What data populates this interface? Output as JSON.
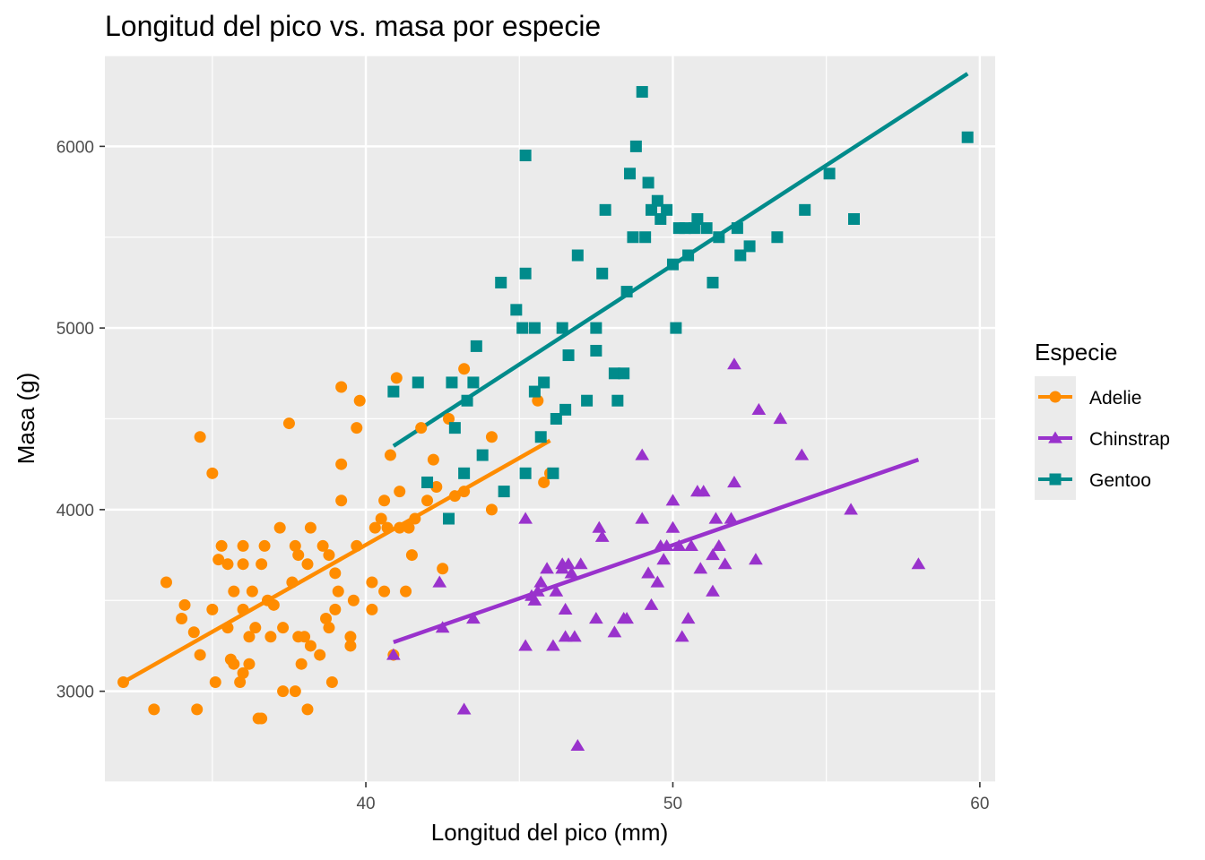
{
  "chart_data": {
    "type": "scatter",
    "title": "Longitud del pico vs. masa por especie",
    "xlabel": "Longitud del pico (mm)",
    "ylabel": "Masa (g)",
    "xlim": [
      31.5,
      60.5
    ],
    "ylim": [
      2500,
      6500
    ],
    "xticks": [
      40,
      50,
      60
    ],
    "yticks": [
      3000,
      4000,
      5000,
      6000
    ],
    "grid": true,
    "legend": {
      "title": "Especie",
      "position": "right"
    },
    "series": [
      {
        "name": "Adelie",
        "color": "#ff8c00",
        "marker": "circle",
        "trend": [
          [
            32.1,
            3050
          ],
          [
            46.0,
            4380
          ]
        ],
        "points": [
          [
            32.1,
            3050
          ],
          [
            33.1,
            2900
          ],
          [
            33.5,
            3600
          ],
          [
            34.0,
            3400
          ],
          [
            34.1,
            3475
          ],
          [
            34.4,
            3325
          ],
          [
            34.5,
            2900
          ],
          [
            34.6,
            3200
          ],
          [
            34.6,
            4400
          ],
          [
            35.0,
            3450
          ],
          [
            35.0,
            4200
          ],
          [
            35.1,
            3050
          ],
          [
            35.2,
            3725
          ],
          [
            35.3,
            3800
          ],
          [
            35.5,
            3350
          ],
          [
            35.5,
            3700
          ],
          [
            35.6,
            3175
          ],
          [
            35.7,
            3150
          ],
          [
            35.7,
            3550
          ],
          [
            35.9,
            3050
          ],
          [
            36.0,
            3100
          ],
          [
            36.0,
            3450
          ],
          [
            36.0,
            3700
          ],
          [
            36.0,
            3800
          ],
          [
            36.2,
            3300
          ],
          [
            36.2,
            3150
          ],
          [
            36.3,
            3550
          ],
          [
            36.4,
            3350
          ],
          [
            36.5,
            2850
          ],
          [
            36.6,
            2850
          ],
          [
            36.6,
            3700
          ],
          [
            36.7,
            3800
          ],
          [
            36.8,
            3500
          ],
          [
            36.9,
            3300
          ],
          [
            37.0,
            3475
          ],
          [
            37.2,
            3900
          ],
          [
            37.3,
            3000
          ],
          [
            37.3,
            3350
          ],
          [
            37.5,
            4475
          ],
          [
            37.6,
            3600
          ],
          [
            37.7,
            3000
          ],
          [
            37.7,
            3800
          ],
          [
            37.8,
            3300
          ],
          [
            37.8,
            3750
          ],
          [
            37.9,
            3150
          ],
          [
            38.0,
            3300
          ],
          [
            38.1,
            2900
          ],
          [
            38.1,
            3700
          ],
          [
            38.2,
            3250
          ],
          [
            38.2,
            3900
          ],
          [
            38.5,
            3200
          ],
          [
            38.6,
            3800
          ],
          [
            38.7,
            3400
          ],
          [
            38.8,
            3350
          ],
          [
            38.8,
            3750
          ],
          [
            38.9,
            3050
          ],
          [
            39.0,
            3450
          ],
          [
            39.0,
            3650
          ],
          [
            39.1,
            3550
          ],
          [
            39.2,
            4250
          ],
          [
            39.2,
            4050
          ],
          [
            39.2,
            4675
          ],
          [
            39.5,
            3250
          ],
          [
            39.5,
            3300
          ],
          [
            39.6,
            3500
          ],
          [
            39.7,
            3800
          ],
          [
            39.7,
            4450
          ],
          [
            39.8,
            4600
          ],
          [
            40.2,
            3600
          ],
          [
            40.2,
            3450
          ],
          [
            40.3,
            3900
          ],
          [
            40.5,
            3950
          ],
          [
            40.6,
            3550
          ],
          [
            40.6,
            4050
          ],
          [
            40.7,
            3900
          ],
          [
            40.8,
            4300
          ],
          [
            40.9,
            3200
          ],
          [
            41.0,
            4725
          ],
          [
            41.1,
            3900
          ],
          [
            41.1,
            4100
          ],
          [
            41.3,
            3550
          ],
          [
            41.4,
            3900
          ],
          [
            41.5,
            3750
          ],
          [
            41.6,
            3950
          ],
          [
            41.8,
            4450
          ],
          [
            42.0,
            4050
          ],
          [
            42.2,
            4275
          ],
          [
            42.3,
            4125
          ],
          [
            42.5,
            3675
          ],
          [
            42.7,
            4500
          ],
          [
            42.9,
            4075
          ],
          [
            43.2,
            4775
          ],
          [
            43.2,
            4100
          ],
          [
            44.1,
            4000
          ],
          [
            44.1,
            4400
          ],
          [
            45.6,
            4600
          ],
          [
            45.8,
            4150
          ],
          [
            46.0,
            4200
          ]
        ]
      },
      {
        "name": "Chinstrap",
        "color": "#9932cc",
        "marker": "triangle",
        "trend": [
          [
            40.9,
            3270
          ],
          [
            58.0,
            4275
          ]
        ],
        "points": [
          [
            40.9,
            3200
          ],
          [
            42.4,
            3600
          ],
          [
            42.5,
            3350
          ],
          [
            43.2,
            2900
          ],
          [
            43.5,
            3400
          ],
          [
            45.2,
            3250
          ],
          [
            45.2,
            3950
          ],
          [
            45.4,
            3525
          ],
          [
            45.5,
            3500
          ],
          [
            45.6,
            3550
          ],
          [
            45.7,
            3600
          ],
          [
            45.9,
            3675
          ],
          [
            46.1,
            3250
          ],
          [
            46.2,
            3550
          ],
          [
            46.4,
            3675
          ],
          [
            46.4,
            3700
          ],
          [
            46.5,
            3450
          ],
          [
            46.5,
            3300
          ],
          [
            46.6,
            3700
          ],
          [
            46.7,
            3650
          ],
          [
            46.8,
            3300
          ],
          [
            46.9,
            2700
          ],
          [
            47.0,
            3700
          ],
          [
            47.5,
            3400
          ],
          [
            47.6,
            3900
          ],
          [
            47.7,
            3850
          ],
          [
            48.1,
            3325
          ],
          [
            48.5,
            3400
          ],
          [
            49.0,
            3950
          ],
          [
            49.0,
            4300
          ],
          [
            49.2,
            3650
          ],
          [
            49.3,
            3475
          ],
          [
            49.5,
            3600
          ],
          [
            49.7,
            3725
          ],
          [
            49.8,
            3800
          ],
          [
            50.0,
            3900
          ],
          [
            50.2,
            3800
          ],
          [
            50.3,
            3300
          ],
          [
            50.5,
            3400
          ],
          [
            50.6,
            3800
          ],
          [
            50.8,
            4100
          ],
          [
            50.9,
            3675
          ],
          [
            51.0,
            4100
          ],
          [
            51.3,
            3550
          ],
          [
            51.3,
            3750
          ],
          [
            51.4,
            3950
          ],
          [
            51.5,
            3800
          ],
          [
            51.7,
            3700
          ],
          [
            51.9,
            3950
          ],
          [
            52.0,
            4150
          ],
          [
            52.0,
            4800
          ],
          [
            52.7,
            3725
          ],
          [
            52.8,
            4550
          ],
          [
            53.5,
            4500
          ],
          [
            54.2,
            4300
          ],
          [
            55.8,
            4000
          ],
          [
            58.0,
            3700
          ],
          [
            50.0,
            4050
          ],
          [
            49.6,
            3800
          ],
          [
            48.4,
            3400
          ]
        ]
      },
      {
        "name": "Gentoo",
        "color": "#008b8b",
        "marker": "square",
        "trend": [
          [
            40.9,
            4350
          ],
          [
            59.6,
            6400
          ]
        ],
        "points": [
          [
            40.9,
            4650
          ],
          [
            41.7,
            4700
          ],
          [
            42.0,
            4150
          ],
          [
            42.7,
            3950
          ],
          [
            42.8,
            4700
          ],
          [
            42.9,
            4450
          ],
          [
            43.2,
            4200
          ],
          [
            43.3,
            4600
          ],
          [
            43.5,
            4700
          ],
          [
            43.6,
            4900
          ],
          [
            43.8,
            4300
          ],
          [
            44.5,
            4100
          ],
          [
            44.4,
            5250
          ],
          [
            44.9,
            5100
          ],
          [
            45.1,
            5000
          ],
          [
            45.2,
            5300
          ],
          [
            45.2,
            4200
          ],
          [
            45.5,
            4650
          ],
          [
            45.5,
            5000
          ],
          [
            45.7,
            4400
          ],
          [
            45.8,
            4700
          ],
          [
            46.1,
            4200
          ],
          [
            46.2,
            4500
          ],
          [
            46.4,
            5000
          ],
          [
            46.5,
            4550
          ],
          [
            46.6,
            4850
          ],
          [
            46.9,
            5400
          ],
          [
            47.2,
            4600
          ],
          [
            47.5,
            4875
          ],
          [
            47.7,
            5300
          ],
          [
            47.8,
            5650
          ],
          [
            48.1,
            4750
          ],
          [
            48.2,
            4600
          ],
          [
            48.4,
            4750
          ],
          [
            48.5,
            5200
          ],
          [
            48.7,
            5500
          ],
          [
            48.8,
            6000
          ],
          [
            49.1,
            5500
          ],
          [
            49.2,
            5800
          ],
          [
            49.3,
            5650
          ],
          [
            49.5,
            5700
          ],
          [
            49.6,
            5600
          ],
          [
            49.8,
            5650
          ],
          [
            50.0,
            5350
          ],
          [
            50.1,
            5000
          ],
          [
            50.2,
            5550
          ],
          [
            50.4,
            5550
          ],
          [
            50.5,
            5400
          ],
          [
            50.7,
            5550
          ],
          [
            50.8,
            5600
          ],
          [
            51.1,
            5550
          ],
          [
            51.3,
            5250
          ],
          [
            51.5,
            5500
          ],
          [
            52.1,
            5550
          ],
          [
            52.2,
            5400
          ],
          [
            52.5,
            5450
          ],
          [
            53.4,
            5500
          ],
          [
            54.3,
            5650
          ],
          [
            55.1,
            5850
          ],
          [
            55.9,
            5600
          ],
          [
            59.6,
            6050
          ],
          [
            49.0,
            6300
          ],
          [
            45.2,
            5950
          ],
          [
            47.5,
            5000
          ],
          [
            48.6,
            5850
          ]
        ]
      }
    ]
  }
}
